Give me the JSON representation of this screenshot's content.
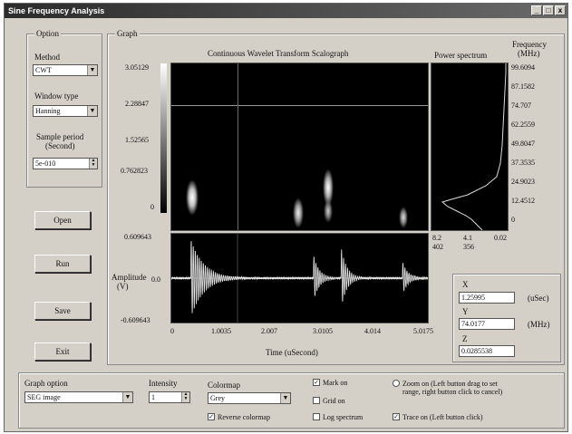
{
  "window": {
    "title": "Sine Frequency Analysis",
    "minimize": "_",
    "maximize": "□",
    "close": "x"
  },
  "options": {
    "group_label": "Option",
    "method_label": "Method",
    "method_value": "CWT",
    "window_label": "Window type",
    "window_value": "Hanning",
    "sample_label_1": "Sample period",
    "sample_label_2": "(Second)",
    "sample_value": "5e-010"
  },
  "buttons": {
    "open": "Open",
    "run": "Run",
    "save": "Save",
    "exit": "Exit"
  },
  "graph": {
    "group_label": "Graph",
    "scalo_title": "Continuous Wavelet Transform Scalograph",
    "power_title": "Power spectrum",
    "freq_label_1": "Frequency",
    "freq_label_2": "(MHz)",
    "colorbar_ticks": [
      "3.05129",
      "2.28847",
      "1.52565",
      "0.762823",
      "0"
    ],
    "freq_ticks": [
      "99.6094",
      "87.1582",
      "74.707",
      "62.2559",
      "49.8047",
      "37.3535",
      "24.9023",
      "12.4512",
      "0"
    ],
    "power_ticks_row1": [
      "8.2",
      "4.1",
      "0.02"
    ],
    "power_ticks_row2": [
      "402",
      "356"
    ],
    "amp_label_1": "Amplitude",
    "amp_label_2": "(V)",
    "amp_ticks": [
      "0.609643",
      "0.0",
      "-0.609643"
    ],
    "time_ticks": [
      "0",
      "1.0035",
      "2.007",
      "3.0105",
      "4.014",
      "5.0175"
    ],
    "time_label": "Time (uSecond)"
  },
  "readout": {
    "x_label": "X",
    "x_value": "1.25995",
    "x_unit": "(uSec)",
    "y_label": "Y",
    "y_value": "74.0177",
    "y_unit": "(MHz)",
    "z_label": "Z",
    "z_value": "0.0285538"
  },
  "bottom": {
    "graph_option_label": "Graph option",
    "graph_option_value": "SEG image",
    "intensity_label": "Intensity",
    "intensity_value": "1",
    "colormap_label": "Colormap",
    "colormap_value": "Grey",
    "reverse_label": "Reverse colormap",
    "mark_label": "Mark on",
    "grid_label": "Grid on",
    "log_label": "Log spectrum",
    "zoom_label_1": "Zoom on (Left button drag to set",
    "zoom_label_2": "range, right button click to cancel)",
    "trace_label": "Trace on (Left button click)"
  },
  "signal": {
    "bursts_us": [
      0.38,
      2.78,
      3.32,
      4.52
    ],
    "burst_amplitude_v": [
      0.56,
      0.34,
      0.44,
      0.24
    ]
  }
}
